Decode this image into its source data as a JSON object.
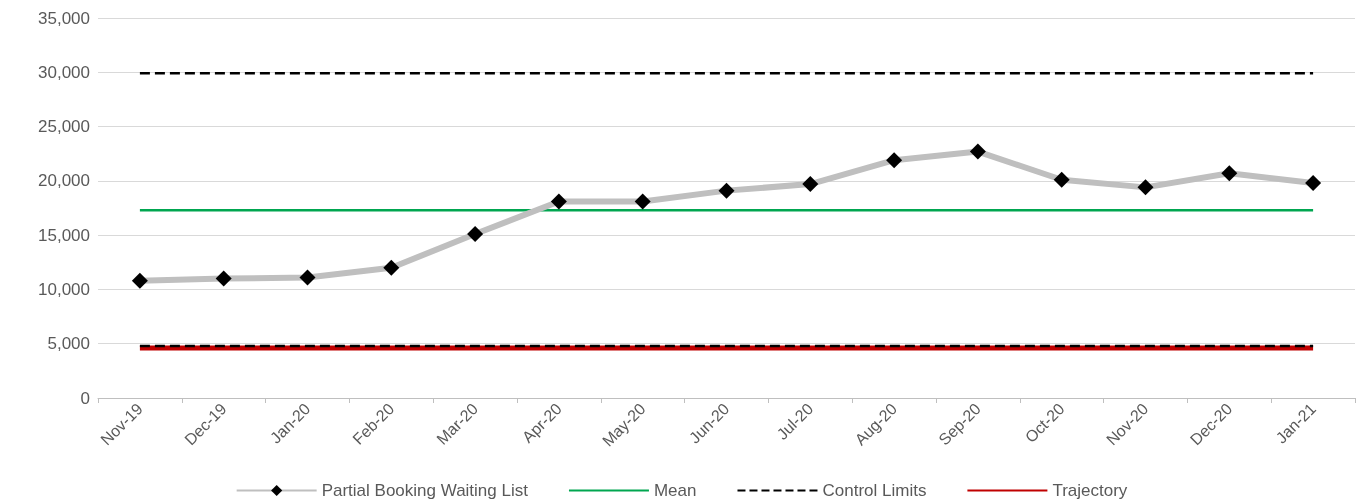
{
  "chart_data": {
    "type": "line",
    "categories": [
      "Nov-19",
      "Dec-19",
      "Jan-20",
      "Feb-20",
      "Mar-20",
      "Apr-20",
      "May-20",
      "Jun-20",
      "Jul-20",
      "Aug-20",
      "Sep-20",
      "Oct-20",
      "Nov-20",
      "Dec-20",
      "Jan-21"
    ],
    "series": [
      {
        "name": "Partial Booking Waiting List",
        "color": "#bfbfbf",
        "marker": "diamond",
        "values": [
          10800,
          11000,
          11100,
          12000,
          15100,
          18100,
          18100,
          19100,
          19700,
          21900,
          22700,
          20100,
          19400,
          20700,
          19800
        ]
      },
      {
        "name": "Mean",
        "color": "#00a650",
        "marker": "none",
        "values": [
          17300,
          17300,
          17300,
          17300,
          17300,
          17300,
          17300,
          17300,
          17300,
          17300,
          17300,
          17300,
          17300,
          17300,
          17300
        ]
      },
      {
        "name": "Control Limits",
        "color": "#000000",
        "marker": "none",
        "line_style": "dashed",
        "values": [
          29900,
          29900,
          29900,
          29900,
          29900,
          29900,
          29900,
          29900,
          29900,
          29900,
          29900,
          29900,
          29900,
          29900,
          29900
        ]
      },
      {
        "color": "#000000",
        "marker": "none",
        "line_style": "dashed",
        "values": [
          4800,
          4800,
          4800,
          4800,
          4800,
          4800,
          4800,
          4800,
          4800,
          4800,
          4800,
          4800,
          4800,
          4800,
          4800
        ]
      },
      {
        "name": "Trajectory",
        "color": "#c00000",
        "marker": "none",
        "values": [
          4600,
          4600,
          4600,
          4600,
          4600,
          4600,
          4600,
          4600,
          4600,
          4600,
          4600,
          4600,
          4600,
          4600,
          4600
        ]
      }
    ],
    "ylim": [
      0,
      35000
    ],
    "yticks": [
      0,
      {
        "value": 5000,
        "label": "5,000"
      },
      {
        "value": 10000,
        "label": "10,000"
      },
      {
        "value": 15000,
        "label": "15,000"
      },
      {
        "value": 20000,
        "label": "20,000"
      },
      {
        "value": 25000,
        "label": "25,000"
      },
      {
        "value": 30000,
        "label": "30,000"
      },
      {
        "value": 35000,
        "label": "35,000"
      }
    ],
    "grid": "y",
    "legend": "bottom"
  }
}
